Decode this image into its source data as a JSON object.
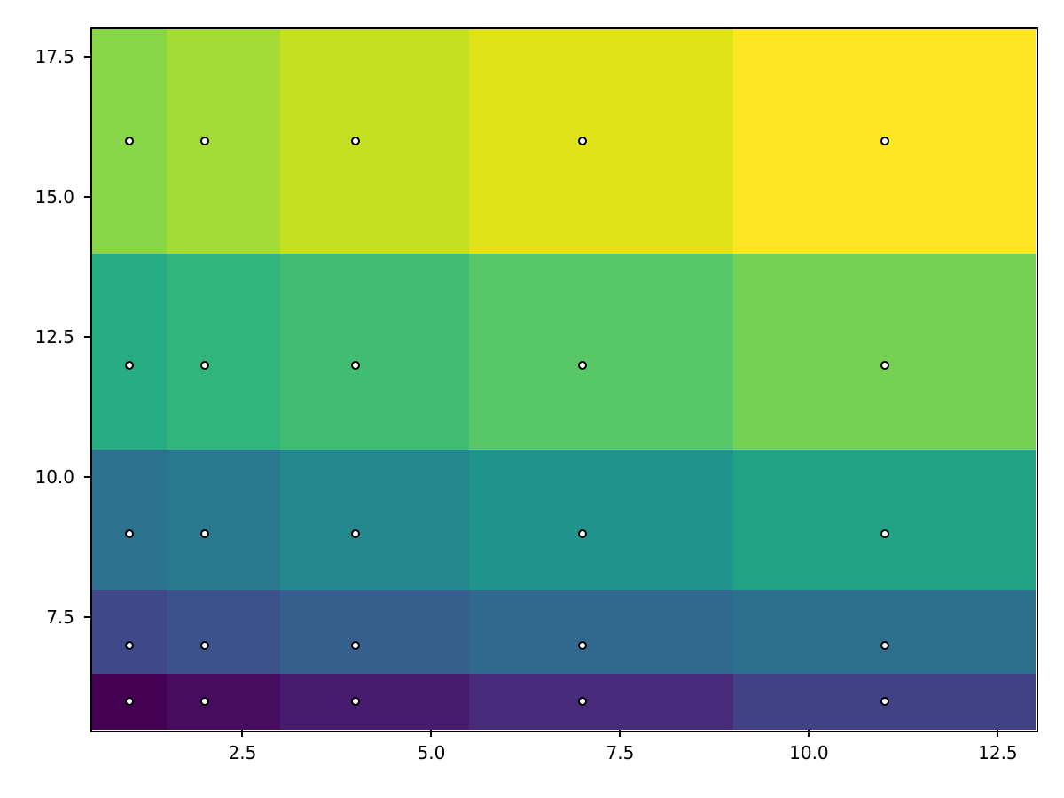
{
  "figure": {
    "background": "#ffffff",
    "title": "",
    "xlabel": "",
    "ylabel": ""
  },
  "chart_data": {
    "type": "heatmap",
    "style": "pcolormesh shading=nearest, viridis colormap, with mesh-point markers",
    "x": [
      1,
      2,
      4,
      7,
      11
    ],
    "y": [
      6,
      7,
      9,
      12,
      16
    ],
    "x_edges": [
      0.5,
      1.5,
      3,
      5.5,
      9,
      13
    ],
    "y_edges": [
      5.5,
      6.5,
      8,
      10.5,
      14,
      18
    ],
    "xlim": [
      0.5,
      13
    ],
    "ylim": [
      5.5,
      18
    ],
    "rows_bottom_to_top": true,
    "cell_colors": [
      [
        "#440154",
        "#460c5e",
        "#471b6d",
        "#472a79",
        "#414285"
      ],
      [
        "#3f4889",
        "#3b528b",
        "#355f8d",
        "#31688e",
        "#2e6f8e"
      ],
      [
        "#2c718e",
        "#29798e",
        "#23898e",
        "#20938c",
        "#22a385"
      ],
      [
        "#26ad81",
        "#32b57c",
        "#40bd72",
        "#58c765",
        "#75d054"
      ],
      [
        "#89d548",
        "#a5db36",
        "#c3e021",
        "#dfe318",
        "#fde725"
      ]
    ],
    "xticks": [
      2.5,
      5.0,
      7.5,
      10.0,
      12.5
    ],
    "xtick_labels": [
      "2.5",
      "5.0",
      "7.5",
      "10.0",
      "12.5"
    ],
    "yticks": [
      7.5,
      10.0,
      12.5,
      15.0,
      17.5
    ],
    "ytick_labels": [
      "7.5",
      "10.0",
      "12.5",
      "15.0",
      "17.5"
    ],
    "grid": false,
    "legend": "none",
    "marker": {
      "shape": "circle",
      "fill": "#ffffff",
      "edge_color": "#000000"
    },
    "colors": {
      "colormap_min": "#440154",
      "colormap_max": "#fde725",
      "spine": "#000000",
      "tick": "#000000",
      "tick_label": "#000000"
    }
  }
}
